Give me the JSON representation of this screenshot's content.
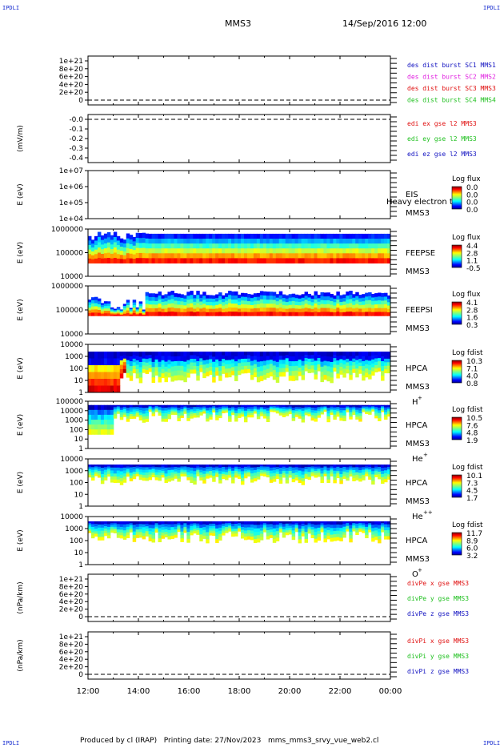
{
  "header": {
    "corner_tag": "IPDLI",
    "spacecraft": "MMS3",
    "datetime": "14/Sep/2016 12:00"
  },
  "footer": {
    "producer": "Produced by cl (IRAP)",
    "printing": "Printing date: 27/Nov/2023",
    "file": "mms_mms3_srvy_vue_web2.cl"
  },
  "time_axis": {
    "labels": [
      "12:00",
      "14:00",
      "16:00",
      "18:00",
      "20:00",
      "22:00",
      "00:00"
    ],
    "range_hours": [
      12,
      24
    ]
  },
  "chart_data": [
    {
      "type": "line",
      "panel": "des_dist",
      "ylabel": "",
      "yticks": [
        "1e+21",
        "8e+20",
        "6e+20",
        "4e+20",
        "2e+20",
        "0"
      ],
      "ylim": [
        0,
        1e+21
      ],
      "series": [
        {
          "name": "des dist burst SC1 MMS1",
          "color": "#1010c0",
          "values": []
        },
        {
          "name": "des dist burst SC2 MMS2",
          "color": "#e020e0",
          "values": []
        },
        {
          "name": "des dist burst SC3 MMS3",
          "color": "#e01010",
          "values": []
        },
        {
          "name": "des dist burst SC4 MMS4",
          "color": "#20c020",
          "values": []
        }
      ],
      "zero_line": 0
    },
    {
      "type": "line",
      "panel": "edi",
      "ylabel": "(mV/m)",
      "yticks": [
        "-0.0",
        "-0.1",
        "-0.2",
        "-0.3",
        "-0.4"
      ],
      "ylim": [
        -0.45,
        0.02
      ],
      "series": [
        {
          "name": "edi ex gse l2 MMS3",
          "color": "#e01010",
          "values": []
        },
        {
          "name": "edi ey gse l2 MMS3",
          "color": "#20c020",
          "values": []
        },
        {
          "name": "edi ez gse l2 MMS3",
          "color": "#1010c0",
          "values": []
        }
      ],
      "zero_line": 0
    },
    {
      "type": "heatmap",
      "panel": "eis",
      "ylabel": "E (eV)",
      "yticks": [
        "1e+07",
        "1e+06",
        "1e+05",
        "1e+04"
      ],
      "instrument": "EIS",
      "overlay_text": "Heavy electron to",
      "spacecraft_label": "MMS3",
      "colorbar_title": "Log flux",
      "colorbar_ticks": [
        "0.0",
        "0.0",
        "0.0",
        "0.0"
      ],
      "coverage": []
    },
    {
      "type": "heatmap",
      "panel": "feeps_e",
      "ylabel": "E (eV)",
      "yticks": [
        "1000000",
        "100000",
        "10000"
      ],
      "instrument": "FEEPSE",
      "spacecraft_label": "MMS3",
      "colorbar_title": "Log flux",
      "colorbar_ticks": [
        "4.4",
        "2.8",
        "1.1",
        "-0.5"
      ],
      "coverage_top_energy_decade": [
        0.95,
        0.9,
        0.8,
        0.75,
        0.75,
        0.75,
        0.75
      ]
    },
    {
      "type": "heatmap",
      "panel": "feeps_i",
      "ylabel": "E (eV)",
      "yticks": [
        "1000000",
        "100000",
        "10000"
      ],
      "instrument": "FEEPSI",
      "spacecraft_label": "MMS3",
      "colorbar_title": "Log flux",
      "colorbar_ticks": [
        "4.1",
        "2.8",
        "1.6",
        "0.3"
      ],
      "coverage_top_energy_decade": [
        0.6,
        0.7,
        0.75,
        0.75,
        0.75,
        0.75,
        0.75
      ]
    },
    {
      "type": "heatmap",
      "panel": "hpca_h",
      "ylabel": "E (eV)",
      "yticks": [
        "10000",
        "1000",
        "100",
        "10",
        "1"
      ],
      "instrument": "HPCA",
      "spacecraft_label": "MMS3",
      "species": "H",
      "species_charge": "+",
      "colorbar_title": "Log fdist",
      "colorbar_ticks": [
        "10.3",
        "7.1",
        "4.0",
        "0.8"
      ]
    },
    {
      "type": "heatmap",
      "panel": "hpca_he",
      "ylabel": "E (eV)",
      "yticks": [
        "100000",
        "10000",
        "1000",
        "100",
        "10",
        "1"
      ],
      "instrument": "HPCA",
      "spacecraft_label": "MMS3",
      "species": "He",
      "species_charge": "+",
      "colorbar_title": "Log fdist",
      "colorbar_ticks": [
        "10.5",
        "7.6",
        "4.8",
        "1.9"
      ]
    },
    {
      "type": "heatmap",
      "panel": "hpca_he2",
      "ylabel": "E (eV)",
      "yticks": [
        "10000",
        "1000",
        "100",
        "10",
        "1"
      ],
      "instrument": "HPCA",
      "spacecraft_label": "MMS3",
      "species": "He",
      "species_charge": "++",
      "colorbar_title": "Log fdist",
      "colorbar_ticks": [
        "10.1",
        "7.3",
        "4.5",
        "1.7"
      ]
    },
    {
      "type": "heatmap",
      "panel": "hpca_o",
      "ylabel": "E (eV)",
      "yticks": [
        "10000",
        "1000",
        "100",
        "10",
        "1"
      ],
      "instrument": "HPCA",
      "spacecraft_label": "MMS3",
      "species": "O",
      "species_charge": "+",
      "colorbar_title": "Log fdist",
      "colorbar_ticks": [
        "11.7",
        "8.9",
        "6.0",
        "3.2"
      ]
    },
    {
      "type": "line",
      "panel": "divpe",
      "ylabel": "(nPa/km)",
      "yticks": [
        "1e+21",
        "8e+20",
        "6e+20",
        "4e+20",
        "2e+20",
        "0"
      ],
      "ylim": [
        0,
        1e+21
      ],
      "series": [
        {
          "name": "divPe x gse MMS3",
          "color": "#e01010",
          "values": []
        },
        {
          "name": "divPe y gse MMS3",
          "color": "#20c020",
          "values": []
        },
        {
          "name": "divPe z gse MMS3",
          "color": "#1010c0",
          "values": []
        }
      ],
      "zero_line": 0
    },
    {
      "type": "line",
      "panel": "divpi",
      "ylabel": "(nPa/km)",
      "yticks": [
        "1e+21",
        "8e+20",
        "6e+20",
        "4e+20",
        "2e+20",
        "0"
      ],
      "ylim": [
        0,
        1e+21
      ],
      "series": [
        {
          "name": "divPi x gse MMS3",
          "color": "#e01010",
          "values": []
        },
        {
          "name": "divPi y gse MMS3",
          "color": "#20c020",
          "values": []
        },
        {
          "name": "divPi z gse MMS3",
          "color": "#1010c0",
          "values": []
        }
      ],
      "zero_line": 0
    }
  ]
}
